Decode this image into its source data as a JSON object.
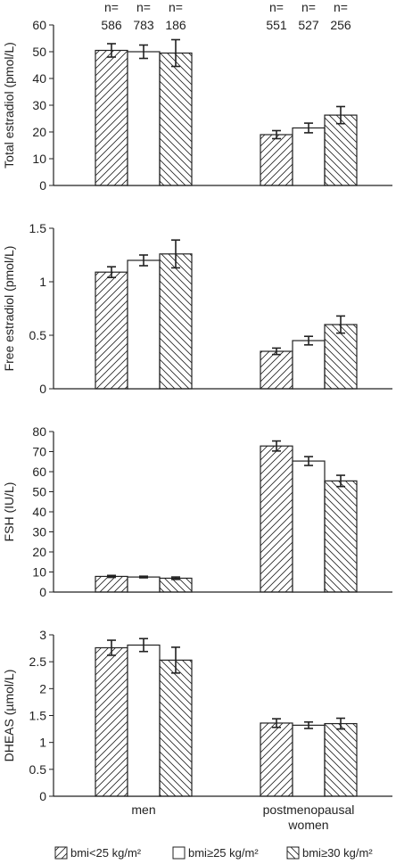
{
  "colors": {
    "stroke": "#222222",
    "background": "#ffffff"
  },
  "chart_data": {
    "type": "bar",
    "groups": [
      "men",
      "postmenopausal\nwomen"
    ],
    "legend": [
      {
        "label": "bmi<25 kg/m²",
        "pattern": "hatch-forward"
      },
      {
        "label": "bmi≥25 kg/m²",
        "pattern": "none"
      },
      {
        "label": "bmi≥30 kg/m²",
        "pattern": "hatch-back"
      }
    ],
    "n_counts": [
      {
        "label": "n=",
        "value": "586"
      },
      {
        "label": "n=",
        "value": "783"
      },
      {
        "label": "n=",
        "value": "186"
      },
      {
        "label": "n=",
        "value": "551"
      },
      {
        "label": "n=",
        "value": "527"
      },
      {
        "label": "n=",
        "value": "256"
      }
    ],
    "panels": [
      {
        "ylabel": "Total estradiol (pmol/L)",
        "ylim": [
          0,
          60
        ],
        "yticks": [
          "0",
          "10",
          "20",
          "30",
          "40",
          "50",
          "60"
        ],
        "series": [
          {
            "name": "bmi<25 kg/m²",
            "values": [
              50.5,
              19.0
            ],
            "err": [
              2.5,
              1.5
            ]
          },
          {
            "name": "bmi≥25 kg/m²",
            "values": [
              50.0,
              21.5
            ],
            "err": [
              2.5,
              1.8
            ]
          },
          {
            "name": "bmi≥30 kg/m²",
            "values": [
              49.5,
              26.3
            ],
            "err": [
              5.0,
              3.2
            ]
          }
        ]
      },
      {
        "ylabel": "Free estradiol (pmol/L)",
        "ylim": [
          0,
          1.5
        ],
        "yticks": [
          "0",
          "0.5",
          "1",
          "1.5"
        ],
        "series": [
          {
            "name": "bmi<25 kg/m²",
            "values": [
              1.09,
              0.35
            ],
            "err": [
              0.05,
              0.03
            ]
          },
          {
            "name": "bmi≥25 kg/m²",
            "values": [
              1.2,
              0.45
            ],
            "err": [
              0.05,
              0.04
            ]
          },
          {
            "name": "bmi≥30 kg/m²",
            "values": [
              1.26,
              0.6
            ],
            "err": [
              0.13,
              0.08
            ]
          }
        ]
      },
      {
        "ylabel": "FSH (IU/L)",
        "ylim": [
          0,
          80
        ],
        "yticks": [
          "0",
          "10",
          "20",
          "30",
          "40",
          "50",
          "60",
          "70",
          "80"
        ],
        "series": [
          {
            "name": "bmi<25 kg/m²",
            "values": [
              7.8,
              72.8
            ],
            "err": [
              0.5,
              2.5
            ]
          },
          {
            "name": "bmi≥25 kg/m²",
            "values": [
              7.5,
              65.3
            ],
            "err": [
              0.4,
              2.2
            ]
          },
          {
            "name": "bmi≥30 kg/m²",
            "values": [
              6.9,
              55.4
            ],
            "err": [
              0.6,
              2.8
            ]
          }
        ]
      },
      {
        "ylabel": "DHEAS (µmol/L)",
        "ylim": [
          0,
          3
        ],
        "yticks": [
          "0",
          "0.5",
          "1",
          "1.5",
          "2",
          "2.5",
          "3"
        ],
        "series": [
          {
            "name": "bmi<25 kg/m²",
            "values": [
              2.76,
              1.36
            ],
            "err": [
              0.14,
              0.08
            ]
          },
          {
            "name": "bmi≥25 kg/m²",
            "values": [
              2.81,
              1.32
            ],
            "err": [
              0.12,
              0.06
            ]
          },
          {
            "name": "bmi≥30 kg/m²",
            "values": [
              2.53,
              1.35
            ],
            "err": [
              0.24,
              0.1
            ]
          }
        ]
      }
    ]
  }
}
